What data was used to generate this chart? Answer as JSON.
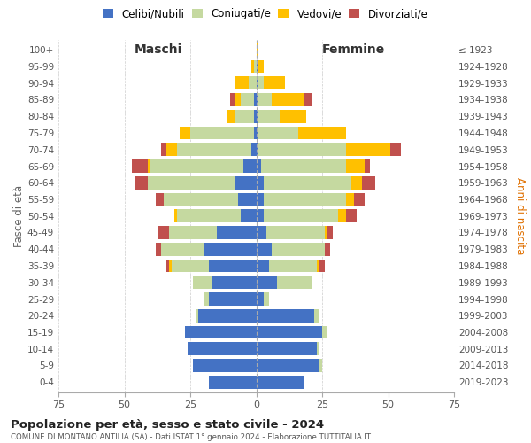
{
  "age_groups": [
    "0-4",
    "5-9",
    "10-14",
    "15-19",
    "20-24",
    "25-29",
    "30-34",
    "35-39",
    "40-44",
    "45-49",
    "50-54",
    "55-59",
    "60-64",
    "65-69",
    "70-74",
    "75-79",
    "80-84",
    "85-89",
    "90-94",
    "95-99",
    "100+"
  ],
  "birth_years": [
    "2019-2023",
    "2014-2018",
    "2009-2013",
    "2004-2008",
    "1999-2003",
    "1994-1998",
    "1989-1993",
    "1984-1988",
    "1979-1983",
    "1974-1978",
    "1969-1973",
    "1964-1968",
    "1959-1963",
    "1954-1958",
    "1949-1953",
    "1944-1948",
    "1939-1943",
    "1934-1938",
    "1929-1933",
    "1924-1928",
    "≤ 1923"
  ],
  "male_celibi": [
    18,
    24,
    26,
    27,
    22,
    18,
    17,
    18,
    20,
    15,
    6,
    7,
    8,
    5,
    2,
    1,
    1,
    1,
    0,
    0,
    0
  ],
  "male_coniugati": [
    0,
    0,
    0,
    0,
    1,
    2,
    7,
    14,
    16,
    18,
    24,
    28,
    33,
    35,
    28,
    24,
    7,
    5,
    3,
    1,
    0
  ],
  "male_vedovi": [
    0,
    0,
    0,
    0,
    0,
    0,
    0,
    1,
    0,
    0,
    1,
    0,
    0,
    1,
    4,
    4,
    3,
    2,
    5,
    1,
    0
  ],
  "male_divorziati": [
    0,
    0,
    0,
    0,
    0,
    0,
    0,
    1,
    2,
    4,
    0,
    3,
    5,
    6,
    2,
    0,
    0,
    2,
    0,
    0,
    0
  ],
  "female_celibi": [
    18,
    24,
    23,
    25,
    22,
    3,
    8,
    5,
    6,
    4,
    3,
    3,
    3,
    2,
    1,
    1,
    1,
    1,
    1,
    1,
    0
  ],
  "female_coniugati": [
    0,
    1,
    1,
    2,
    2,
    2,
    13,
    18,
    20,
    22,
    28,
    31,
    33,
    32,
    33,
    15,
    8,
    5,
    2,
    0,
    0
  ],
  "female_vedovi": [
    0,
    0,
    0,
    0,
    0,
    0,
    0,
    1,
    0,
    1,
    3,
    3,
    4,
    7,
    17,
    18,
    10,
    12,
    8,
    2,
    1
  ],
  "female_divorziati": [
    0,
    0,
    0,
    0,
    0,
    0,
    0,
    2,
    2,
    2,
    4,
    4,
    5,
    2,
    4,
    0,
    0,
    3,
    0,
    0,
    0
  ],
  "colors": {
    "celibi": "#4472c4",
    "coniugati": "#c5d9a0",
    "vedovi": "#ffc000",
    "divorziati": "#c0504d"
  },
  "title_main": "Popolazione per età, sesso e stato civile - 2024",
  "title_sub": "COMUNE DI MONTANO ANTILIA (SA) - Dati ISTAT 1° gennaio 2024 - Elaborazione TUTTITALIA.IT",
  "ylabel_left": "Fasce di età",
  "ylabel_right": "Anni di nascita",
  "xlabel_left": "Maschi",
  "xlabel_right": "Femmine",
  "xlim": 75,
  "bg_color": "#ffffff",
  "grid_color": "#cccccc"
}
